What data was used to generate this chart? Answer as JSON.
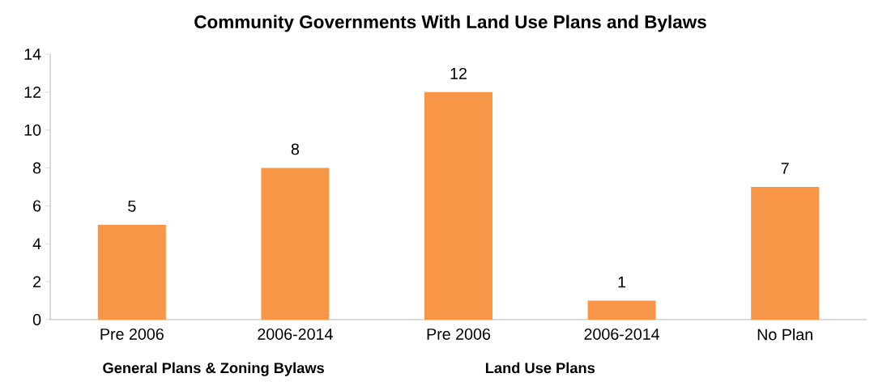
{
  "chart_data": {
    "type": "bar",
    "title": "Community Governments With Land Use Plans and Bylaws",
    "categories": [
      "Pre 2006",
      "2006-2014",
      "Pre 2006",
      "2006-2014",
      "No Plan"
    ],
    "values": [
      5,
      8,
      12,
      1,
      7
    ],
    "color": "#f79646",
    "ylim": [
      0,
      14
    ],
    "yticks": [
      0,
      2,
      4,
      6,
      8,
      10,
      12,
      14
    ],
    "grid": false,
    "data_labels": true,
    "annotations": [
      "General Plans & Zoning Bylaws",
      "Land Use Plans"
    ]
  }
}
